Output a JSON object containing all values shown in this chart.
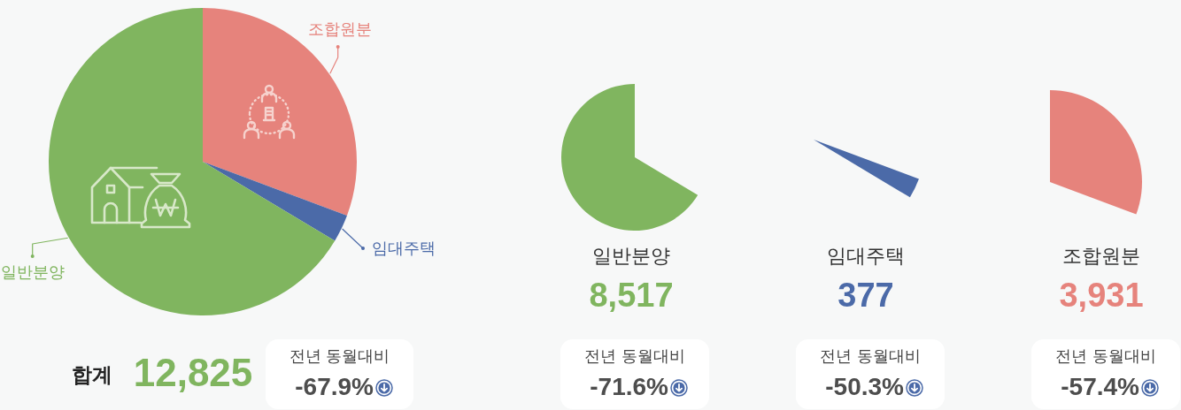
{
  "chart_data": {
    "type": "pie",
    "categories": [
      "조합원분",
      "임대주택",
      "일반분양"
    ],
    "values": [
      30.7,
      2.9,
      66.4
    ],
    "colors": [
      "#e6837c",
      "#4b6aa8",
      "#80b55f"
    ],
    "annotations": [
      "8,517",
      "377",
      "3,931",
      "합계",
      "12,825",
      "전년 동월대비",
      "-67.9%",
      "전년 동월대비",
      "-71.6%",
      "전년 동월대비",
      "-50.3%",
      "전년 동월대비",
      "-57.4%"
    ]
  }
}
